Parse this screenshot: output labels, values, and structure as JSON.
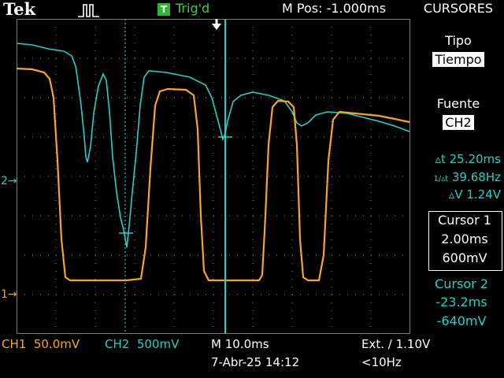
{
  "header": {
    "brand": "Tek",
    "trigger_badge": "T",
    "trigger_status": "Trig'd",
    "m_pos": "M Pos: -1.000ms",
    "menu_title": "CURSORES",
    "trigger_icon": "pulse-trigger-icon"
  },
  "menu": {
    "tipo_label": "Tipo",
    "tipo_value": "Tiempo",
    "fuente_label": "Fuente",
    "fuente_value": "CH2"
  },
  "measurements": {
    "delta_t": "▵t 25.20ms",
    "freq_label": "1/▵t",
    "freq": "39.68Hz",
    "delta_v": "▵V 1.24V"
  },
  "cursor1": {
    "title": "Cursor 1",
    "time": "2.00ms",
    "volt": "600mV"
  },
  "cursor2": {
    "title": "Cursor 2",
    "time": "-23.2ms",
    "volt": "-640mV"
  },
  "markers": {
    "ch2": "2→",
    "ch1": "1→"
  },
  "footer": {
    "ch1_scale": "CH1  50.0mV",
    "ch2_scale": "CH2  500mV",
    "timebase": "M 10.0ms",
    "trigger": "Ext. ∕ 1.10V",
    "datetime": "7-Abr-25 14:12",
    "rate": "<10Hz"
  },
  "colors": {
    "ch1": "#f5a623",
    "ch2": "#25cfc9",
    "grid": "#7a7a7a",
    "trigger_badge": "#2fb52f"
  }
}
